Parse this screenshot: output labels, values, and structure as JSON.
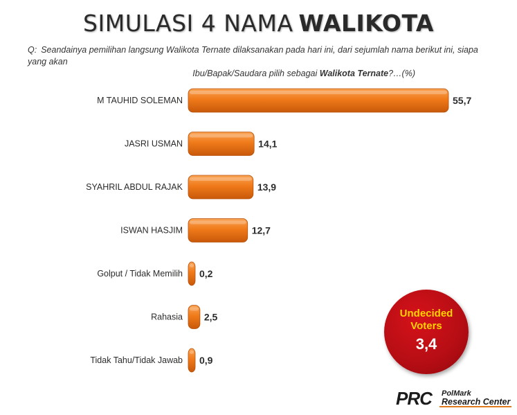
{
  "title": {
    "plain": "SIMULASI 4 NAMA",
    "bold": "WALIKOTA"
  },
  "question": {
    "prefix": "Q:",
    "line1": "Seandainya pemilihan langsung Walikota Ternate dilaksanakan pada hari ini, dari sejumlah nama berikut ini, siapa yang akan",
    "line2_pre": "Ibu/Bapak/Saudara  pilih sebagai",
    "line2_bold": "Walikota Ternate",
    "line2_post": "?…(%)"
  },
  "chart_data": {
    "type": "bar",
    "orientation": "horizontal",
    "categories": [
      "M TAUHID SOLEMAN",
      "JASRI USMAN",
      "SYAHRIL ABDUL RAJAK",
      "ISWAN HASJIM",
      "Golput / Tidak Memilih",
      "Rahasia",
      "Tidak Tahu/Tidak Jawab"
    ],
    "values": [
      55.7,
      14.1,
      13.9,
      12.7,
      0.2,
      2.5,
      0.9
    ],
    "value_labels": [
      "55,7",
      "14,1",
      "13,9",
      "12,7",
      "0,2",
      "2,5",
      "0,9"
    ],
    "xlim": [
      0,
      60
    ],
    "bar_color": "#f07a1a"
  },
  "undecided": {
    "label_line1": "Undecided",
    "label_line2": "Voters",
    "value": "3,4",
    "color": "#c4111a",
    "label_color": "#ffd200"
  },
  "logo": {
    "mark": "PRC",
    "line1": "PolMark",
    "line2": "Research Center"
  }
}
